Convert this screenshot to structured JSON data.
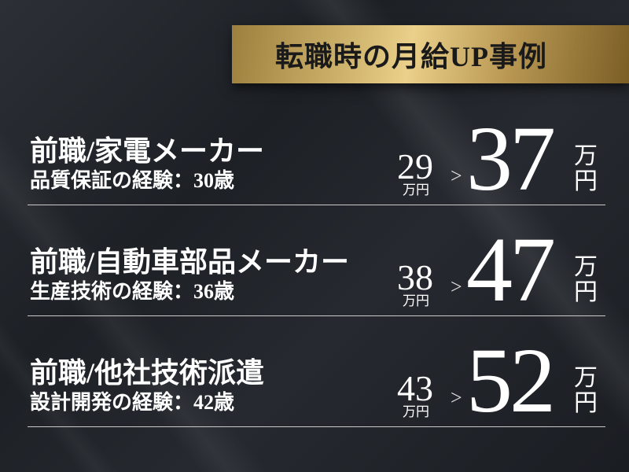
{
  "header": {
    "title": "転職時の月給UP事例"
  },
  "colors": {
    "gold": "#d8bd76",
    "background": "#1d2126",
    "text": "#ffffff"
  },
  "cases": [
    {
      "title": "前職/家電メーカー",
      "subtitle": "品質保証の経験：30歳",
      "before": "29",
      "before_unit": "万円",
      "arrow": ">",
      "after": "37",
      "after_unit_1": "万",
      "after_unit_2": "円"
    },
    {
      "title": "前職/自動車部品メーカー",
      "subtitle": "生産技術の経験：36歳",
      "before": "38",
      "before_unit": "万円",
      "arrow": ">",
      "after": "47",
      "after_unit_1": "万",
      "after_unit_2": "円"
    },
    {
      "title": "前職/他社技術派遣",
      "subtitle": "設計開発の経験：42歳",
      "before": "43",
      "before_unit": "万円",
      "arrow": ">",
      "after": "52",
      "after_unit_1": "万",
      "after_unit_2": "円"
    }
  ]
}
